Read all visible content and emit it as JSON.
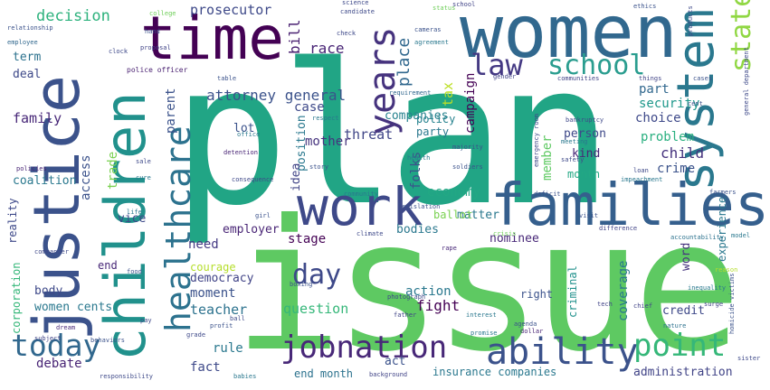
{
  "cloud": {
    "words": [
      {
        "text": "plan",
        "color": "#21a585"
      },
      {
        "text": "issue",
        "color": "#5ec962"
      },
      {
        "text": "women",
        "color": "#31688e"
      },
      {
        "text": "time",
        "color": "#440154"
      },
      {
        "text": "justice",
        "color": "#3b528b"
      },
      {
        "text": "children",
        "color": "#21918c"
      },
      {
        "text": "families",
        "color": "#355f8d"
      },
      {
        "text": "system",
        "color": "#2a788e"
      },
      {
        "text": "work",
        "color": "#3e4989"
      },
      {
        "text": "jobnation",
        "color": "#482878"
      },
      {
        "text": "ability",
        "color": "#3b528b"
      },
      {
        "text": "healthcare",
        "color": "#2c728e"
      },
      {
        "text": "school",
        "color": "#2a9d8f"
      },
      {
        "text": "today",
        "color": "#31688e"
      },
      {
        "text": "point",
        "color": "#35b779"
      },
      {
        "text": "law",
        "color": "#443983"
      },
      {
        "text": "state",
        "color": "#90d743"
      },
      {
        "text": "years",
        "color": "#46337e"
      },
      {
        "text": "day",
        "color": "#3e4989"
      },
      {
        "text": "attorney general",
        "color": "#3b528b"
      },
      {
        "text": "decision",
        "color": "#2db27d"
      },
      {
        "text": "prosecutor",
        "color": "#3e4989"
      },
      {
        "text": "race",
        "color": "#482475"
      },
      {
        "text": "place",
        "color": "#31688e"
      },
      {
        "text": "tax",
        "color": "#bddf26"
      },
      {
        "text": "bill",
        "color": "#481f70"
      },
      {
        "text": "policy",
        "color": "#26828e"
      },
      {
        "text": "party",
        "color": "#2a788e"
      },
      {
        "text": "campaign",
        "color": "#440154"
      },
      {
        "text": "security",
        "color": "#1f988b"
      },
      {
        "text": "part",
        "color": "#31688e"
      },
      {
        "text": "choice",
        "color": "#3e4989"
      },
      {
        "text": "problem",
        "color": "#29af7f"
      },
      {
        "text": "child",
        "color": "#46337e"
      },
      {
        "text": "crime",
        "color": "#3b528b"
      },
      {
        "text": "month",
        "color": "#22a884"
      },
      {
        "text": "experience",
        "color": "#2a788e"
      },
      {
        "text": "case",
        "color": "#3e4989"
      },
      {
        "text": "companies",
        "color": "#26828e"
      },
      {
        "text": "threat",
        "color": "#404688"
      },
      {
        "text": "economy",
        "color": "#22a884"
      },
      {
        "text": "mother",
        "color": "#46337e"
      },
      {
        "text": "position",
        "color": "#2a788e"
      },
      {
        "text": "idea",
        "color": "#414487"
      },
      {
        "text": "folks",
        "color": "#3b528b"
      },
      {
        "text": "member",
        "color": "#5ec962"
      },
      {
        "text": "person",
        "color": "#3e4989"
      },
      {
        "text": "kind",
        "color": "#482878"
      },
      {
        "text": "family",
        "color": "#482878"
      },
      {
        "text": "term",
        "color": "#2c728e"
      },
      {
        "text": "deal",
        "color": "#3e4989"
      },
      {
        "text": "access",
        "color": "#3b528b"
      },
      {
        "text": "trade",
        "color": "#7ad151"
      },
      {
        "text": "parent",
        "color": "#3b528b"
      },
      {
        "text": "coalition",
        "color": "#2a788e"
      },
      {
        "text": "reality",
        "color": "#3e4989"
      },
      {
        "text": "vice",
        "color": "#3e4989"
      },
      {
        "text": "need",
        "color": "#443983"
      },
      {
        "text": "employer",
        "color": "#482475"
      },
      {
        "text": "stage",
        "color": "#440154"
      },
      {
        "text": "bodies",
        "color": "#2a788e"
      },
      {
        "text": "matter",
        "color": "#2a788e"
      },
      {
        "text": "nominee",
        "color": "#482878"
      },
      {
        "text": "ballot",
        "color": "#7ad151"
      },
      {
        "text": "democracy",
        "color": "#414487"
      },
      {
        "text": "courage",
        "color": "#b5de2b"
      },
      {
        "text": "moment",
        "color": "#3b528b"
      },
      {
        "text": "teacher",
        "color": "#2c728e"
      },
      {
        "text": "question",
        "color": "#35b779"
      },
      {
        "text": "action",
        "color": "#2a788e"
      },
      {
        "text": "fight",
        "color": "#440154"
      },
      {
        "text": "right",
        "color": "#3b528b"
      },
      {
        "text": "coverage",
        "color": "#2a788e"
      },
      {
        "text": "criminal",
        "color": "#21918c"
      },
      {
        "text": "word",
        "color": "#46337e"
      },
      {
        "text": "credit",
        "color": "#3e4989"
      },
      {
        "text": "body",
        "color": "#3e4989"
      },
      {
        "text": "women cents",
        "color": "#2a788e"
      },
      {
        "text": "corporation",
        "color": "#35b779"
      },
      {
        "text": "debate",
        "color": "#482475"
      },
      {
        "text": "rule",
        "color": "#2a788e"
      },
      {
        "text": "fact",
        "color": "#3e4989"
      },
      {
        "text": "end month",
        "color": "#2c728e"
      },
      {
        "text": "act",
        "color": "#3b528b"
      },
      {
        "text": "insurance companies",
        "color": "#2a788e"
      },
      {
        "text": "administration",
        "color": "#414487"
      },
      {
        "text": "lot",
        "color": "#3b528b"
      },
      {
        "text": "end",
        "color": "#482878"
      },
      {
        "text": "college",
        "color": "#6ece58"
      },
      {
        "text": "police officer",
        "color": "#481f70"
      },
      {
        "text": "relationship",
        "color": "#3b528b"
      },
      {
        "text": "employee",
        "color": "#31688e"
      },
      {
        "text": "candidate",
        "color": "#3e4989"
      },
      {
        "text": "agreement",
        "color": "#2a788e"
      },
      {
        "text": "requirement",
        "color": "#31688e"
      },
      {
        "text": "community",
        "color": "#2a788e"
      },
      {
        "text": "bankruptcy",
        "color": "#3e4989"
      },
      {
        "text": "things",
        "color": "#414487"
      },
      {
        "text": "majority",
        "color": "#3b528b"
      },
      {
        "text": "detention",
        "color": "#482475"
      },
      {
        "text": "impeachment",
        "color": "#2a788e"
      },
      {
        "text": "consequence",
        "color": "#3e4989"
      },
      {
        "text": "farmers",
        "color": "#3b528b"
      },
      {
        "text": "difference",
        "color": "#414487"
      },
      {
        "text": "accountability",
        "color": "#2c728e"
      },
      {
        "text": "girl",
        "color": "#3b528b"
      },
      {
        "text": "climate",
        "color": "#3e4989"
      },
      {
        "text": "crisis",
        "color": "#6ece58"
      },
      {
        "text": "boxing",
        "color": "#3b528b"
      },
      {
        "text": "rape",
        "color": "#482878"
      },
      {
        "text": "photograph",
        "color": "#3e4989"
      },
      {
        "text": "interest",
        "color": "#2a788e"
      },
      {
        "text": "father",
        "color": "#414487"
      },
      {
        "text": "agenda",
        "color": "#3b528b"
      },
      {
        "text": "promise",
        "color": "#2a788e"
      },
      {
        "text": "dollar",
        "color": "#482475"
      },
      {
        "text": "grade",
        "color": "#3e4989"
      },
      {
        "text": "profit",
        "color": "#3b528b"
      },
      {
        "text": "nature",
        "color": "#2c728e"
      },
      {
        "text": "sister",
        "color": "#3e4989"
      },
      {
        "text": "homicide victims",
        "color": "#3b528b"
      },
      {
        "text": "background",
        "color": "#414487"
      },
      {
        "text": "responsibility",
        "color": "#3e4989"
      },
      {
        "text": "babies",
        "color": "#2a788e"
      },
      {
        "text": "behaviors",
        "color": "#3b528b"
      },
      {
        "text": "dream",
        "color": "#482878"
      },
      {
        "text": "commander",
        "color": "#3e4989"
      },
      {
        "text": "subject",
        "color": "#414487"
      },
      {
        "text": "story",
        "color": "#3b528b"
      },
      {
        "text": "health",
        "color": "#2a788e"
      },
      {
        "text": "science",
        "color": "#3e4989"
      },
      {
        "text": "proposal",
        "color": "#414487"
      },
      {
        "text": "ethics",
        "color": "#3b528b"
      },
      {
        "text": "sale",
        "color": "#3e4989"
      },
      {
        "text": "policies",
        "color": "#482475"
      },
      {
        "text": "gender",
        "color": "#414487"
      },
      {
        "text": "cameras",
        "color": "#3b528b"
      },
      {
        "text": "clock",
        "color": "#3e4989"
      },
      {
        "text": "life",
        "color": "#2a788e"
      },
      {
        "text": "table",
        "color": "#3b528b"
      },
      {
        "text": "communities",
        "color": "#414487"
      },
      {
        "text": "general department",
        "color": "#3e4989"
      },
      {
        "text": "model",
        "color": "#2a788e"
      },
      {
        "text": "food",
        "color": "#3b528b"
      },
      {
        "text": "pay",
        "color": "#3e4989"
      },
      {
        "text": "chief",
        "color": "#414487"
      },
      {
        "text": "hand",
        "color": "#3b528b"
      },
      {
        "text": "office",
        "color": "#2a788e"
      },
      {
        "text": "reason",
        "color": "#b5de2b"
      },
      {
        "text": "ball",
        "color": "#3e4989"
      },
      {
        "text": "cases",
        "color": "#3b528b"
      },
      {
        "text": "tech",
        "color": "#414487"
      },
      {
        "text": "products",
        "color": "#3e4989"
      },
      {
        "text": "soldiers",
        "color": "#3b528b"
      },
      {
        "text": "respect",
        "color": "#2a788e"
      },
      {
        "text": "status",
        "color": "#6ece58"
      },
      {
        "text": "meeting",
        "color": "#2a788e"
      },
      {
        "text": "safety",
        "color": "#3e4989"
      },
      {
        "text": "cent",
        "color": "#3b528b"
      },
      {
        "text": "surge",
        "color": "#414487"
      },
      {
        "text": "emergency room",
        "color": "#3e4989"
      },
      {
        "text": "deficit",
        "color": "#3b528b"
      },
      {
        "text": "cure",
        "color": "#2a788e"
      },
      {
        "text": "legislation",
        "color": "#3b528b"
      },
      {
        "text": "school",
        "color": "#414487"
      },
      {
        "text": "check",
        "color": "#3e4989"
      },
      {
        "text": "visit",
        "color": "#3b528b"
      },
      {
        "text": "inequality",
        "color": "#2a788e"
      },
      {
        "text": "loan",
        "color": "#3e4989"
      }
    ]
  }
}
